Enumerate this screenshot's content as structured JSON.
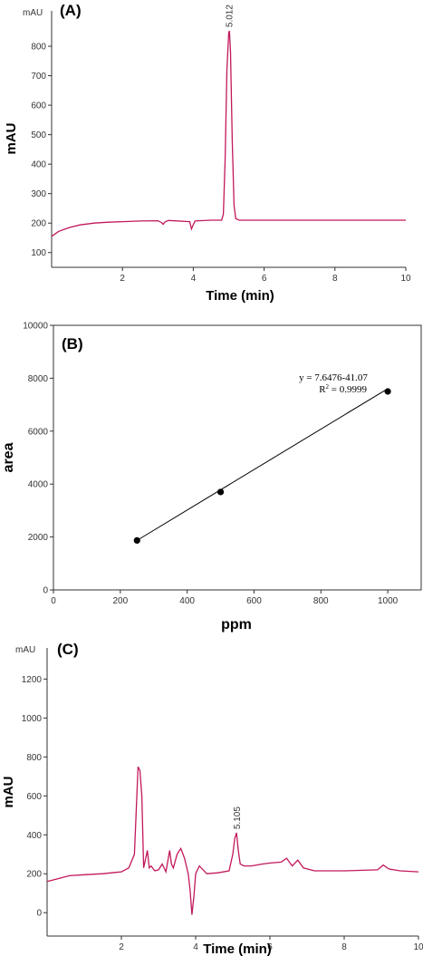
{
  "colors": {
    "trace": "#c2185b",
    "axis": "#333333",
    "fit": "#000000"
  },
  "chart_data": [
    {
      "type": "line",
      "panel_label": "(A)",
      "unit_tick": "mAU",
      "xlabel": "Time (min)",
      "ylabel": "mAU",
      "xlim": [
        0,
        10
      ],
      "ylim": [
        50,
        920
      ],
      "x_ticks": [
        2,
        4,
        6,
        8,
        10
      ],
      "x_tick_labels": [
        "2",
        "4",
        "6",
        "8",
        "10"
      ],
      "y_ticks": [
        100,
        200,
        300,
        400,
        500,
        600,
        700,
        800
      ],
      "y_tick_labels": [
        "100",
        "200",
        "300",
        "400",
        "500",
        "600",
        "700",
        "800"
      ],
      "peak_label": "5.012",
      "peak_label_x": 5.01,
      "grid": false,
      "series": [
        {
          "x": [
            0,
            0.2,
            0.5,
            0.8,
            1.2,
            1.6,
            2.0,
            2.5,
            3.0,
            3.1,
            3.15,
            3.2,
            3.3,
            3.9,
            3.95,
            4.0,
            4.05,
            4.15,
            4.5,
            4.8,
            4.85,
            4.9,
            4.95,
            5.0,
            5.02,
            5.05,
            5.1,
            5.15,
            5.2,
            5.3,
            6.0,
            7.0,
            8.0,
            9.0,
            10.0
          ],
          "y": [
            155,
            172,
            185,
            194,
            200,
            203,
            205,
            207,
            208,
            202,
            196,
            204,
            209,
            205,
            180,
            195,
            207,
            208,
            210,
            210,
            230,
            420,
            720,
            845,
            852,
            780,
            480,
            260,
            215,
            210,
            210,
            210,
            210,
            210,
            210
          ]
        }
      ]
    },
    {
      "type": "scatter",
      "panel_label": "(B)",
      "xlabel": "ppm",
      "ylabel": "area",
      "xlim": [
        0,
        1100
      ],
      "ylim": [
        0,
        10000
      ],
      "x_ticks": [
        0,
        200,
        400,
        600,
        800,
        1000
      ],
      "x_tick_labels": [
        "0",
        "200",
        "400",
        "600",
        "800",
        "1000"
      ],
      "y_ticks": [
        0,
        2000,
        4000,
        6000,
        8000,
        10000
      ],
      "y_tick_labels": [
        "0",
        "2000",
        "4000",
        "6000",
        "8000",
        "10000"
      ],
      "grid": false,
      "equation": "y = 7.6476-41.07",
      "r2_prefix": "R",
      "r2_sup": "2",
      "r2_value": " = 0.9999",
      "fit_line": {
        "x": [
          250,
          1000
        ],
        "y": [
          1871,
          7606
        ]
      },
      "series": [
        {
          "x": [
            250,
            500,
            1000
          ],
          "y": [
            1870,
            3700,
            7500
          ]
        }
      ]
    },
    {
      "type": "line",
      "panel_label": "(C)",
      "unit_tick": "mAU",
      "xlabel": "Time (min)",
      "ylabel": "mAU",
      "xlim": [
        0,
        10
      ],
      "ylim": [
        -120,
        1360
      ],
      "x_ticks": [
        2,
        4,
        6,
        8,
        10
      ],
      "x_tick_labels": [
        "2",
        "4",
        "6",
        "8",
        "10"
      ],
      "y_ticks": [
        0,
        200,
        400,
        600,
        800,
        1000,
        1200
      ],
      "y_tick_labels": [
        "0",
        "200",
        "400",
        "600",
        "800",
        "1000",
        "1200"
      ],
      "peak_label": "5.105",
      "peak_label_x": 5.105,
      "grid": false,
      "series": [
        {
          "x": [
            0,
            0.3,
            0.6,
            1.0,
            1.5,
            2.0,
            2.2,
            2.35,
            2.45,
            2.5,
            2.55,
            2.6,
            2.7,
            2.75,
            2.8,
            2.9,
            3.0,
            3.1,
            3.2,
            3.3,
            3.35,
            3.4,
            3.5,
            3.6,
            3.7,
            3.8,
            3.85,
            3.9,
            3.95,
            4.0,
            4.1,
            4.3,
            4.6,
            4.9,
            5.0,
            5.05,
            5.1,
            5.15,
            5.2,
            5.3,
            5.5,
            5.8,
            6.0,
            6.3,
            6.45,
            6.6,
            6.75,
            6.9,
            7.2,
            8.0,
            8.9,
            9.05,
            9.2,
            9.5,
            10.0
          ],
          "y": [
            160,
            175,
            190,
            195,
            200,
            210,
            230,
            300,
            750,
            730,
            600,
            230,
            320,
            230,
            240,
            215,
            220,
            250,
            210,
            320,
            250,
            230,
            300,
            330,
            280,
            200,
            120,
            -10,
            80,
            200,
            240,
            200,
            205,
            215,
            300,
            380,
            410,
            320,
            250,
            240,
            240,
            250,
            255,
            260,
            280,
            240,
            270,
            230,
            215,
            215,
            220,
            245,
            225,
            215,
            210
          ]
        }
      ]
    }
  ]
}
